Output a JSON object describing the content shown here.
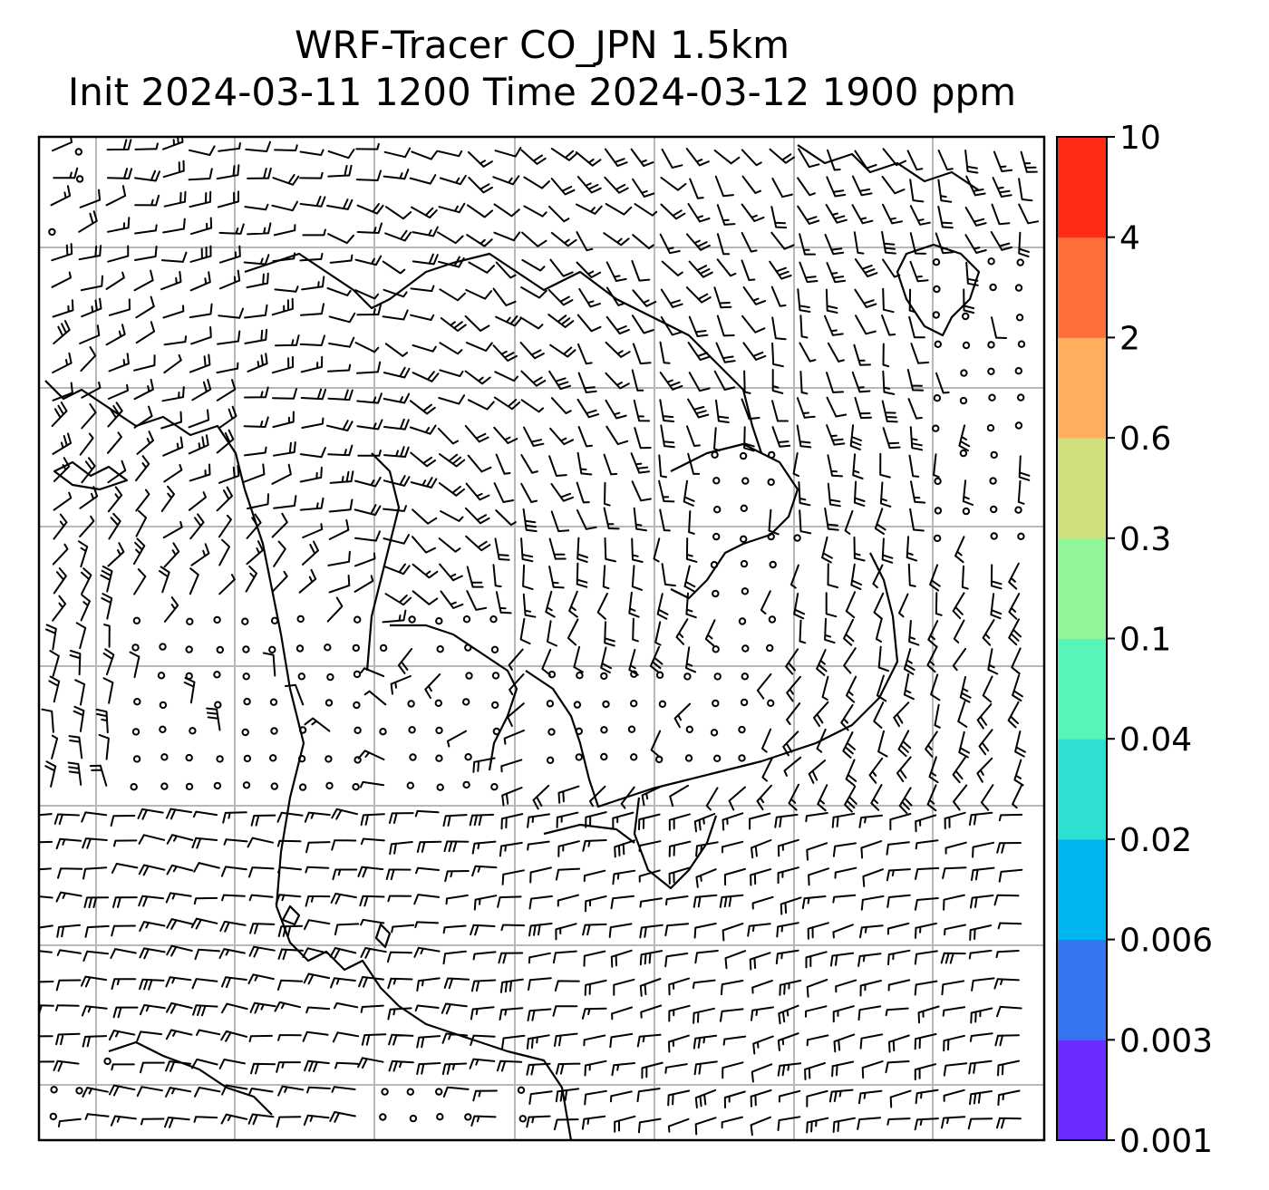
{
  "title": {
    "line1": "WRF-Tracer CO_JPN 1.5km",
    "line2": "Init 2024-03-11 1200 Time 2024-03-12 1900 ppm"
  },
  "colorbar": {
    "levels": [
      "0.001",
      "0.003",
      "0.006",
      "0.02",
      "0.04",
      "0.1",
      "0.3",
      "0.6",
      "2",
      "4",
      "10"
    ],
    "colors": [
      "#6a2cff",
      "#3575f2",
      "#00b4ee",
      "#2ee0d2",
      "#58f5b9",
      "#92f59a",
      "#d0e07f",
      "#ffaf5e",
      "#ff6f3a",
      "#ff2b14"
    ]
  },
  "map": {
    "layers": [
      "wind-barbs",
      "coastlines",
      "graticule"
    ],
    "calm_marker": "circle-icon"
  }
}
